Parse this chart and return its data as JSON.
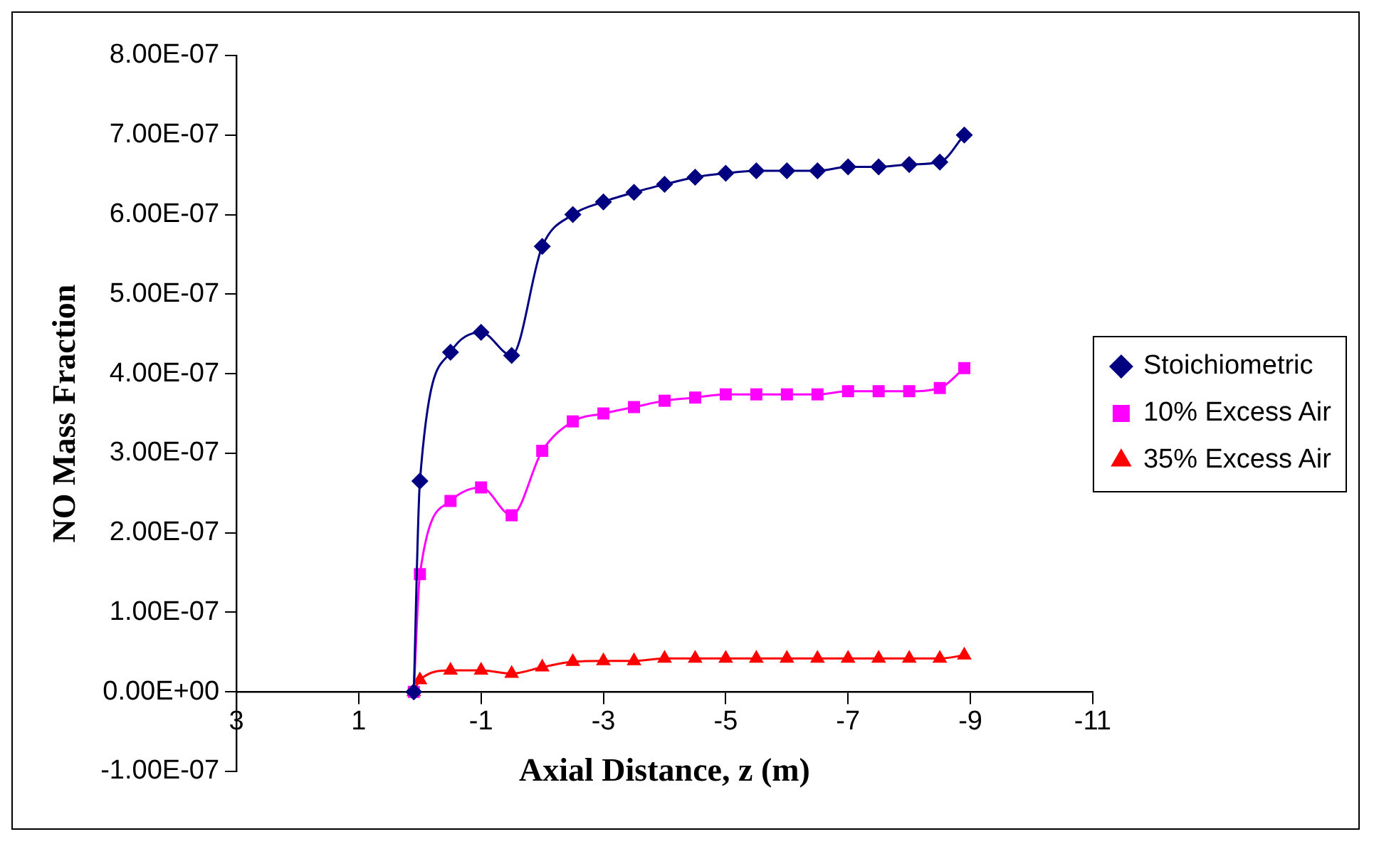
{
  "chart_data": {
    "type": "line",
    "xlabel": "Axial Distance, z (m)",
    "ylabel": "NO Mass Fraction",
    "x": [
      0.1,
      0,
      -0.5,
      -1,
      -1.5,
      -2,
      -2.5,
      -3,
      -3.5,
      -4,
      -4.5,
      -5,
      -5.5,
      -6,
      -6.5,
      -7,
      -7.5,
      -8,
      -8.5,
      -8.9
    ],
    "series": [
      {
        "name": "Stoichiometric",
        "color": "#000080",
        "marker": "diamond",
        "values": [
          0,
          2.65e-07,
          4.27e-07,
          4.52e-07,
          4.23e-07,
          5.6e-07,
          6e-07,
          6.16e-07,
          6.28e-07,
          6.38e-07,
          6.47e-07,
          6.52e-07,
          6.55e-07,
          6.55e-07,
          6.55e-07,
          6.6e-07,
          6.6e-07,
          6.63e-07,
          6.66e-07,
          7e-07
        ]
      },
      {
        "name": "10% Excess Air",
        "color": "#ff00ff",
        "marker": "square",
        "values": [
          0,
          1.48e-07,
          2.4e-07,
          2.57e-07,
          2.22e-07,
          3.03e-07,
          3.4e-07,
          3.5e-07,
          3.58e-07,
          3.66e-07,
          3.7e-07,
          3.74e-07,
          3.74e-07,
          3.74e-07,
          3.74e-07,
          3.78e-07,
          3.78e-07,
          3.78e-07,
          3.82e-07,
          4.07e-07
        ]
      },
      {
        "name": "35% Excess Air",
        "color": "#ff0000",
        "marker": "triangle",
        "values": [
          0,
          1.5e-08,
          2.7e-08,
          2.7e-08,
          2.3e-08,
          3.1e-08,
          3.8e-08,
          3.9e-08,
          3.9e-08,
          4.2e-08,
          4.2e-08,
          4.2e-08,
          4.2e-08,
          4.2e-08,
          4.2e-08,
          4.2e-08,
          4.2e-08,
          4.2e-08,
          4.2e-08,
          4.6e-08
        ]
      }
    ],
    "xlim": [
      3,
      -11
    ],
    "xticks": [
      3,
      1,
      -1,
      -3,
      -5,
      -7,
      -9,
      -11
    ],
    "ylim": [
      -1e-07,
      8e-07
    ],
    "yticks": [
      {
        "value": -1e-07,
        "label": "-1.00E-07"
      },
      {
        "value": 0,
        "label": "0.00E+00"
      },
      {
        "value": 1e-07,
        "label": "1.00E-07"
      },
      {
        "value": 2e-07,
        "label": "2.00E-07"
      },
      {
        "value": 3e-07,
        "label": "3.00E-07"
      },
      {
        "value": 4e-07,
        "label": "4.00E-07"
      },
      {
        "value": 5e-07,
        "label": "5.00E-07"
      },
      {
        "value": 6e-07,
        "label": "6.00E-07"
      },
      {
        "value": 7e-07,
        "label": "7.00E-07"
      },
      {
        "value": 8e-07,
        "label": "8.00E-07"
      }
    ],
    "grid": false,
    "legend": "right",
    "line_style": "solid"
  }
}
